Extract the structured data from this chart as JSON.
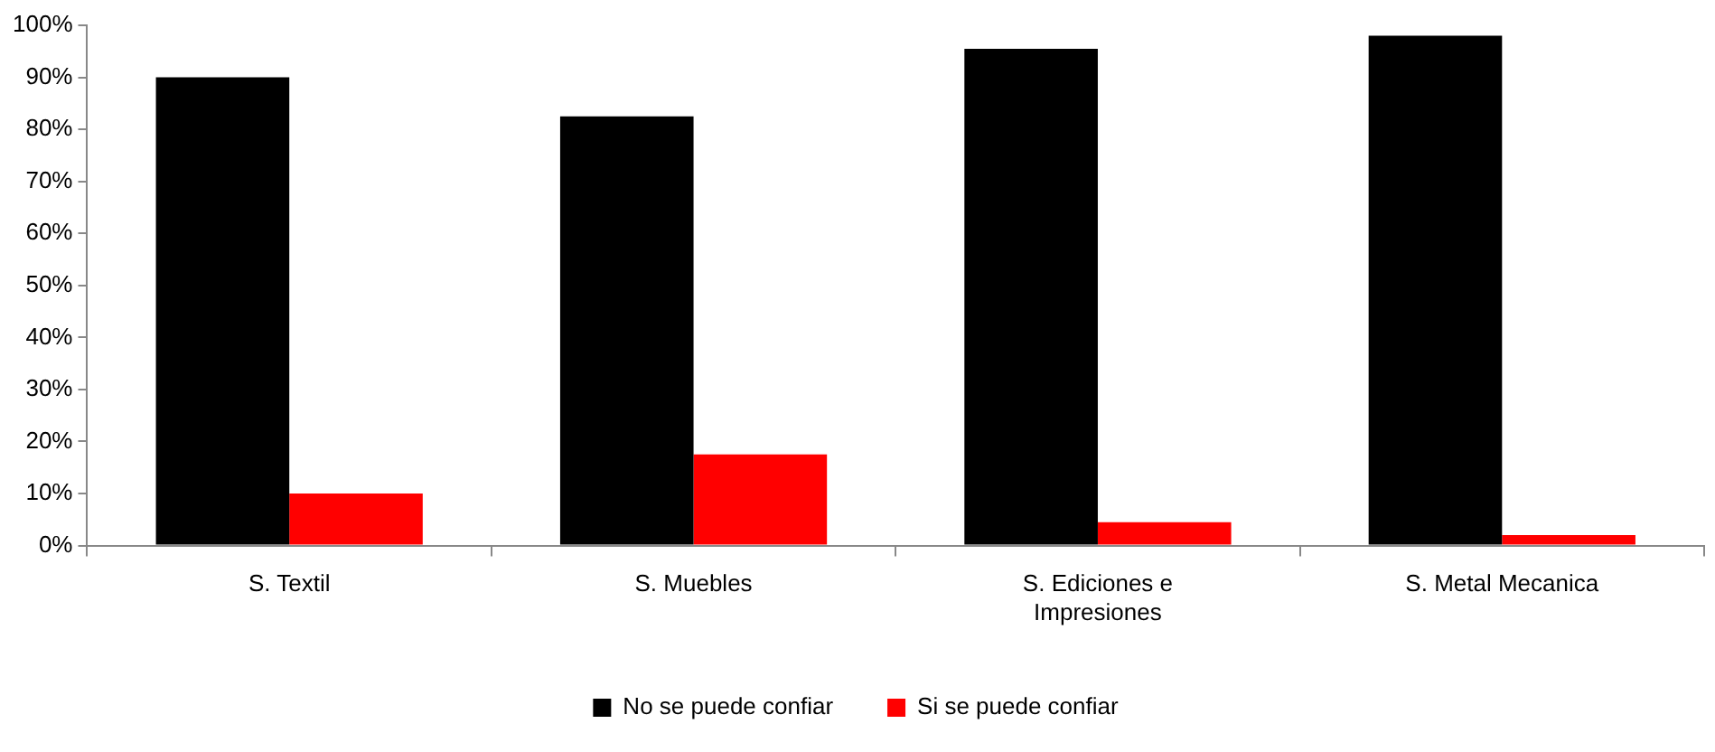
{
  "chart_data": {
    "type": "bar",
    "categories": [
      "S. Textil",
      "S. Muebles",
      "S. Ediciones e Impresiones",
      "S. Metal Mecanica"
    ],
    "series": [
      {
        "name": "No se puede confiar",
        "color": "#000000",
        "values": [
          90,
          82.5,
          95.5,
          98
        ]
      },
      {
        "name": "Si se puede confiar",
        "color": "#ff0000",
        "values": [
          10,
          17.5,
          4.5,
          2
        ]
      }
    ],
    "ylim": [
      0,
      100
    ],
    "yticks": [
      {
        "value": 0,
        "label": "0%"
      },
      {
        "value": 10,
        "label": "10%"
      },
      {
        "value": 20,
        "label": "20%"
      },
      {
        "value": 30,
        "label": "30%"
      },
      {
        "value": 40,
        "label": "40%"
      },
      {
        "value": 50,
        "label": "50%"
      },
      {
        "value": 60,
        "label": "60%"
      },
      {
        "value": 70,
        "label": "70%"
      },
      {
        "value": 80,
        "label": "80%"
      },
      {
        "value": 90,
        "label": "90%"
      },
      {
        "value": 100,
        "label": "100%"
      }
    ],
    "grid": false,
    "legend": "bottom"
  }
}
